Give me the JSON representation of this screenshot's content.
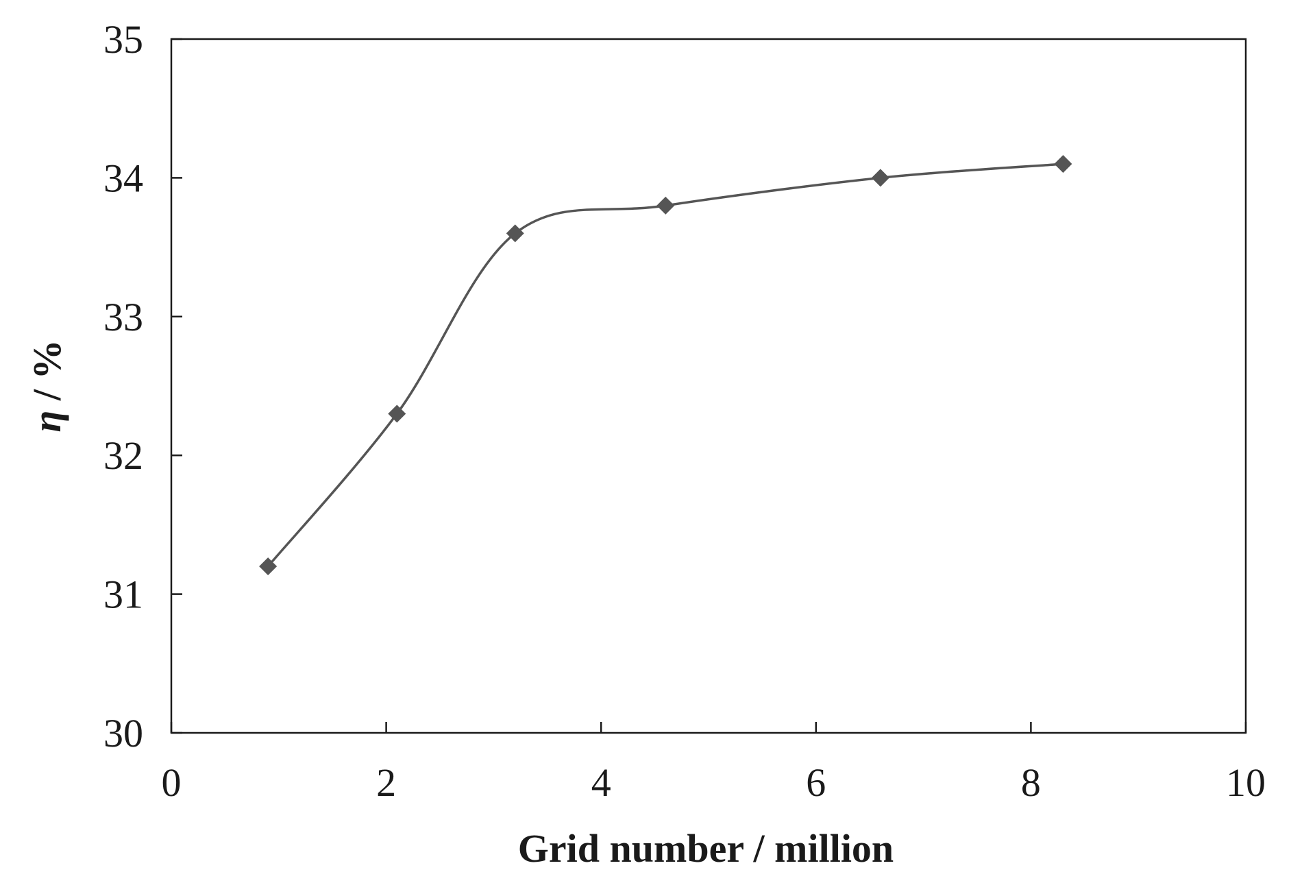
{
  "chart_data": {
    "type": "line",
    "title": "",
    "xlabel": "Grid number  / million",
    "ylabel_symbol": "η",
    "ylabel_rest": " / %",
    "xlim": [
      0,
      10
    ],
    "ylim": [
      30,
      35
    ],
    "xticks": [
      0,
      2,
      4,
      6,
      8,
      10
    ],
    "yticks": [
      30,
      31,
      32,
      33,
      34,
      35
    ],
    "grid": false,
    "legend": "none",
    "line_color": "#555555",
    "marker": "diamond",
    "smooth": true,
    "series": [
      {
        "x": [
          0.9,
          2.1,
          3.2,
          4.6,
          6.6,
          8.3
        ],
        "y": [
          31.2,
          32.3,
          33.6,
          33.8,
          34.0,
          34.1
        ]
      }
    ]
  }
}
